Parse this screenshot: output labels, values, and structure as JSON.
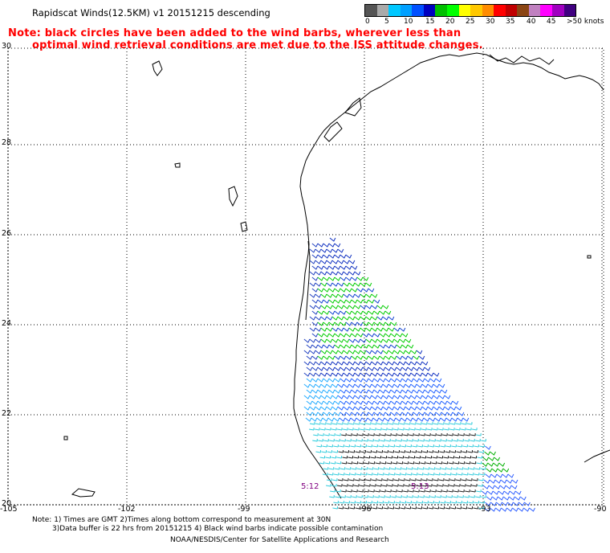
{
  "header": {
    "title": "Rapidscat Winds(12.5KM) v1 20151215 descending",
    "note_line1": "Note: black circles have been added to the wind barbs, wherever less than",
    "note_line2": "optimal wind retrieval conditions are met due to the ISS attitude changes."
  },
  "legend": {
    "colors": [
      "#555555",
      "#aaaaaa",
      "#00c8ff",
      "#00a0ff",
      "#0050ff",
      "#0000c0",
      "#00c000",
      "#00ff00",
      "#ffff00",
      "#ffc800",
      "#ff8c00",
      "#ff0000",
      "#c00000",
      "#8b4513",
      "#c080c0",
      "#ff00ff",
      "#a000c0",
      "#400080"
    ],
    "labels": [
      "0",
      "5",
      "10",
      "15",
      "20",
      "25",
      "30",
      "35",
      "40",
      "45",
      ">50 knots"
    ]
  },
  "axes": {
    "y_ticks": [
      "20",
      "22",
      "24",
      "26",
      "28",
      "30"
    ],
    "x_ticks": [
      "-105",
      "-102",
      "-99",
      "-96",
      "-93",
      "-90"
    ]
  },
  "time_labels": [
    "5:12",
    "5:13"
  ],
  "footer": {
    "line1": "Note: 1) Times are GMT 2)Times along bottom correspond to measurement at 30N",
    "line2": "3)Data buffer is 22 hrs from 20151215 4) Black wind barbs indicate possible contamination",
    "credit": "NOAA/NESDIS/Center for Satellite Applications and Research"
  }
}
